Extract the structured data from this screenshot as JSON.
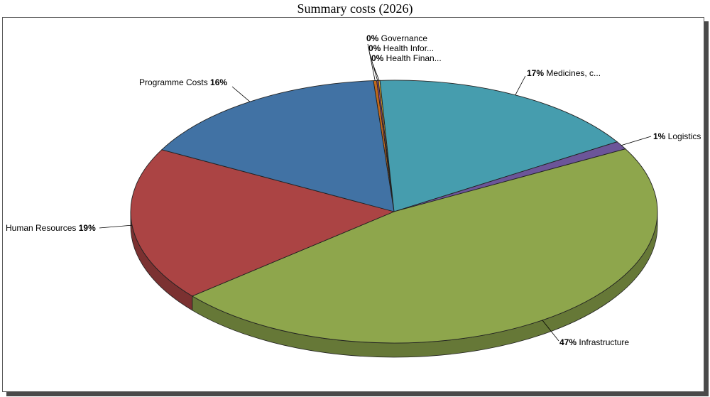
{
  "chart_data": {
    "type": "pie",
    "title": "Summary costs (2026)",
    "slices": [
      {
        "name": "Governance",
        "label": "Governance",
        "value": 0.2,
        "pct_label": "0%",
        "color": "#c2691c"
      },
      {
        "name": "Health Information",
        "label": "Health Infor...",
        "value": 0.1,
        "pct_label": "0%",
        "color": "#8e4a86"
      },
      {
        "name": "Health Financing",
        "label": "Health Finan...",
        "value": 0.1,
        "pct_label": "0%",
        "color": "#d8a22a"
      },
      {
        "name": "Medicines, commodities",
        "label": "Medicines, c...",
        "value": 17.0,
        "pct_label": "17%",
        "color": "#469dae"
      },
      {
        "name": "Logistics",
        "label": "Logistics",
        "value": 1.0,
        "pct_label": "1%",
        "color": "#6c5599"
      },
      {
        "name": "Infrastructure",
        "label": "Infrastructure",
        "value": 47.0,
        "pct_label": "47%",
        "color": "#8ea64c"
      },
      {
        "name": "Human Resources",
        "label": "Human Resources",
        "value": 19.0,
        "pct_label": "19%",
        "color": "#ab4444"
      },
      {
        "name": "Programme Costs",
        "label": "Programme Costs",
        "value": 16.0,
        "pct_label": "16%",
        "color": "#4172a4"
      }
    ],
    "style": "3d-tilted",
    "legend": "none"
  }
}
